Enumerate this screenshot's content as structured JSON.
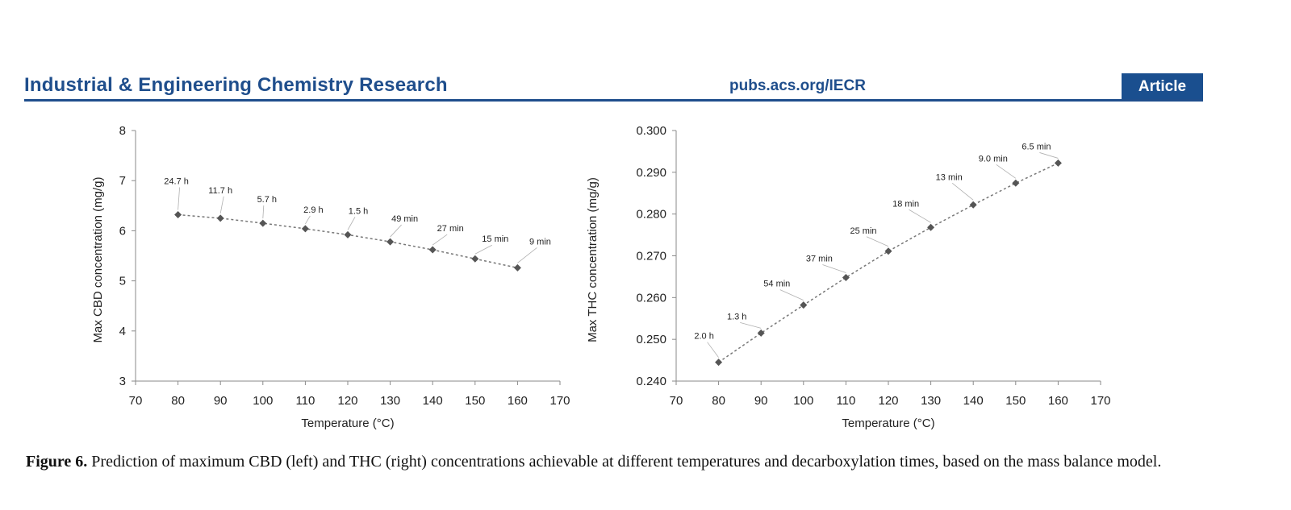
{
  "header": {
    "journal_title": "Industrial & Engineering Chemistry Research",
    "url": "pubs.acs.org/IECR",
    "badge": "Article"
  },
  "caption": {
    "label": "Figure 6.",
    "text": " Prediction of maximum CBD (left) and THC (right) concentrations achievable at different temperatures and decarboxylation times, based on the mass balance model."
  },
  "colors": {
    "brand": "#1f4e8c",
    "marker": "#555555",
    "line": "#777777"
  },
  "chart_data": [
    {
      "type": "line",
      "xlabel": "Temperature (°C)",
      "ylabel": "Max CBD concentration (mg/g)",
      "xlim": [
        70,
        170
      ],
      "ylim": [
        3,
        8
      ],
      "xticks": [
        70,
        80,
        90,
        100,
        110,
        120,
        130,
        140,
        150,
        160,
        170
      ],
      "yticks": [
        "3",
        "4",
        "5",
        "6",
        "7",
        "8"
      ],
      "marker": "diamond",
      "line_style": "dotted",
      "grid": false,
      "x": [
        80,
        90,
        100,
        110,
        120,
        130,
        140,
        150,
        160
      ],
      "y": [
        6.32,
        6.25,
        6.15,
        6.04,
        5.92,
        5.78,
        5.62,
        5.44,
        5.26
      ],
      "annotations": [
        "24.7 h",
        "11.7 h",
        "5.7 h",
        "2.9 h",
        "1.5 h",
        "49 min",
        "27 min",
        "15 min",
        "9 min"
      ]
    },
    {
      "type": "line",
      "xlabel": "Temperature (°C)",
      "ylabel": "Max THC concentration (mg/g)",
      "xlim": [
        70,
        170
      ],
      "ylim": [
        0.24,
        0.3
      ],
      "xticks": [
        70,
        80,
        90,
        100,
        110,
        120,
        130,
        140,
        150,
        160,
        170
      ],
      "yticks": [
        "0.240",
        "0.250",
        "0.260",
        "0.270",
        "0.280",
        "0.290",
        "0.300"
      ],
      "marker": "diamond",
      "line_style": "dotted",
      "grid": false,
      "x": [
        80,
        90,
        100,
        110,
        120,
        130,
        140,
        150,
        160
      ],
      "y": [
        0.2445,
        0.2515,
        0.2582,
        0.2648,
        0.2711,
        0.2768,
        0.2822,
        0.2874,
        0.2922
      ],
      "annotations": [
        "2.0 h",
        "1.3 h",
        "54 min",
        "37 min",
        "25 min",
        "18 min",
        "13 min",
        "9.0 min",
        "6.5 min"
      ]
    }
  ]
}
